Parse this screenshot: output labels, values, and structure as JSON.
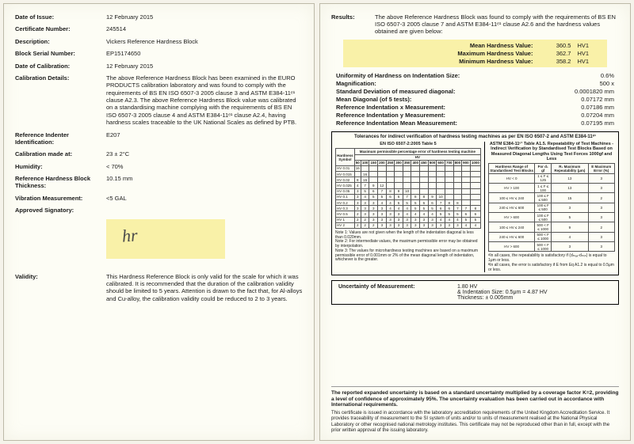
{
  "left": {
    "date_of_issue": {
      "label": "Date of Issue:",
      "value": "12 February 2015"
    },
    "cert_no": {
      "label": "Certificate Number:",
      "value": "245514"
    },
    "description": {
      "label": "Description:",
      "value": "Vickers Reference Hardness Block"
    },
    "serial": {
      "label": "Block Serial Number:",
      "value": "EP15174650"
    },
    "date_cal": {
      "label": "Date of Calibration:",
      "value": "12 February 2015"
    },
    "cal_details": {
      "label": "Calibration Details:",
      "value": "The above Reference Hardness Block has been examined in the EURO PRODUCTS calibration laboratory and was found to comply with the requirements of BS EN ISO 6507-3 2005 clause 3 and ASTM E384-11ᵉ¹ clause A2.3. The above Reference Hardness Block value was calibrated on a standardising machine complying with the requirements of BS EN ISO 6507-3 2005 clause 4 and ASTM E384-11ᵉ¹ clause A2.4, having hardness scales traceable to the UK National Scales as defined by PTB."
    },
    "indenter": {
      "label": "Reference Indenter Identification:",
      "value": "E207"
    },
    "cal_at": {
      "label": "Calibration made at:",
      "value": "23 ± 2°C"
    },
    "humidity": {
      "label": "Humidity:",
      "value": "< 70%"
    },
    "thickness": {
      "label": "Reference Hardness Block Thickness:",
      "value": "10.15 mm"
    },
    "vibration": {
      "label": "Vibration Measurement:",
      "value": "<5 GAL"
    },
    "signatory": {
      "label": "Approved Signatory:"
    },
    "validity": {
      "label": "Validity:",
      "value": "This Hardness Reference Block is only valid for the scale for which it was calibrated. It is recommended that the duration of the calibration validity should be limited to 5 years. Attention is drawn to the fact that, for Al-alloys and Cu-alloy, the calibration validity could be reduced to 2 to 3 years."
    }
  },
  "right": {
    "results": {
      "label": "Results:",
      "value": "The above Reference Hardness Block was found to comply with the requirements of BS EN ISO 6507-3 2005 clause 7 and ASTM E384-11ᵉ¹ clause A2.6 and the hardness values obtained are given below:"
    },
    "mean": {
      "k": "Mean Hardness Value:",
      "v": "360.5",
      "u": "HV1"
    },
    "max": {
      "k": "Maximum Hardness Value:",
      "v": "362.7",
      "u": "HV1"
    },
    "min": {
      "k": "Minimum Hardness Value:",
      "v": "358.2",
      "u": "HV1"
    },
    "metrics": [
      {
        "k": "Uniformity of Hardness on Indentation Size:",
        "v": "0.6%"
      },
      {
        "k": "Magnification:",
        "v": "500 x"
      },
      {
        "k": "Standard Deviation of measured diagonal:",
        "v": "0.0001820 mm"
      },
      {
        "k": "Mean Diagonal (of 5 tests):",
        "v": "0.07172 mm"
      },
      {
        "k": "Reference Indentation x Measurement:",
        "v": "0.07186 mm"
      },
      {
        "k": "Reference Indentation y Measurement:",
        "v": "0.07204 mm"
      },
      {
        "k": "Reference Indentation Mean Measurement:",
        "v": "0.07195 mm"
      }
    ],
    "tol_title": "Tolerances for indirect verification of hardness testing machines as per EN ISO 6507-2 and ASTM E384-11ᵉ¹",
    "tol_left_title": "EN ISO 6507-2:2005 Table 5",
    "tol_right_title": "ASTM E384-11ᵉ¹ Table A1.5. Repeatability of Test Machines - Indirect Verification by Standardised Test Blocks Based on Measured Diagonal Lengths Using Test Forces 1000gf and Less",
    "iso_symbols": [
      "HV 0.01",
      "HV 0.015",
      "HV 0.02",
      "HV 0.025",
      "HV 0.05",
      "HV 0.1",
      "HV 0.2",
      "HV 0.3",
      "HV 0.5",
      "HV 1",
      "HV 2"
    ],
    "iso_head_top": "Maximum permissible percentage error of hardness testing machine",
    "iso_head_sub": [
      "50",
      "100",
      "150",
      "200",
      "250",
      "300",
      "350",
      "400",
      "450",
      "500",
      "600",
      "700",
      "800",
      "900",
      "1000"
    ],
    "iso_rows": [
      [
        "16",
        "",
        "",
        "",
        "",
        "",
        "",
        "",
        "",
        "",
        "",
        "",
        "",
        "",
        ""
      ],
      [
        "",
        "16",
        "",
        "",
        "",
        "",
        "",
        "",
        "",
        "",
        "",
        "",
        "",
        "",
        ""
      ],
      [
        "8",
        "15",
        "",
        "",
        "",
        "",
        "",
        "",
        "",
        "",
        "",
        "",
        "",
        "",
        ""
      ],
      [
        "4",
        "7",
        "9",
        "12",
        "",
        "",
        "",
        "",
        "",
        "",
        "",
        "",
        "",
        "",
        ""
      ],
      [
        "3",
        "5",
        "6",
        "7",
        "8",
        "9",
        "10",
        "",
        "",
        "",
        "",
        "",
        "",
        "",
        ""
      ],
      [
        "3",
        "4",
        "5",
        "5",
        "6",
        "6",
        "7",
        "8",
        "8",
        "9",
        "10",
        "",
        "",
        "",
        ""
      ],
      [
        "3",
        "3",
        "3",
        "4",
        "4",
        "5",
        "5",
        "5",
        "6",
        "6",
        "7",
        "8",
        "8",
        "",
        ""
      ],
      [
        "3",
        "3",
        "3",
        "3",
        "4",
        "4",
        "4",
        "5",
        "5",
        "5",
        "6",
        "6",
        "7",
        "7",
        "8"
      ],
      [
        "2",
        "3",
        "3",
        "3",
        "3",
        "3",
        "4",
        "4",
        "4",
        "4",
        "5",
        "5",
        "5",
        "6",
        "6"
      ],
      [
        "2",
        "2",
        "3",
        "3",
        "3",
        "3",
        "3",
        "3",
        "3",
        "3",
        "4",
        "4",
        "4",
        "5",
        "5"
      ],
      [
        "2",
        "2",
        "2",
        "3",
        "3",
        "3",
        "3",
        "3",
        "3",
        "3",
        "3",
        "3",
        "3",
        "4",
        "4"
      ]
    ],
    "iso_notes": "Note 1: Values are not given when the length of the indentation diagonal is less than 0.020mm.\nNote 2: For intermediate values, the maximum permissible error may be obtained by interpolation.\nNote 3: The values for microhardness testing machines are based on a maximum permissible error of 0.001mm or 2% of the mean diagonal length of indentation, whichever is the greater.",
    "astm_head": [
      "Hardness Range of Standardised Test Blocks",
      "For d₁ gf",
      "R₁ Maximum Repeatability (μm)",
      "E Maximum Error (%)"
    ],
    "astm_rows": [
      [
        "HV < 0",
        "1 ≤ F ≤ 125",
        "13",
        "3"
      ],
      [
        "HV > 100",
        "1 ≤ F ≤ 100",
        "13",
        "3"
      ],
      [
        "100 ≤ HV ≤ 240",
        "100 ≤ F ≤ 500",
        "15",
        "2"
      ],
      [
        "240 ≤ HV ≤ 600",
        "100 ≤ F ≤ 500",
        "3",
        "3"
      ],
      [
        "HV > 600",
        "100 ≤ F ≤ 500",
        "5",
        "3"
      ],
      [
        "100 ≤ HV ≤ 240",
        "500 < F ≤ 1000",
        "9",
        "2"
      ],
      [
        "240 ≤ HV ≤ 600",
        "500 < F ≤ 1000",
        "4",
        "3"
      ],
      [
        "HV > 600",
        "500 < F ≤ 1000",
        "3",
        "3"
      ]
    ],
    "astm_foot": "ᴬIn all cases, the repeatability is satisfactory if (dₘₐₓ-dₘᵢₙ) is equal to 1μm or less.\nᴮIn all cases, the error is satisfactory if E from Eq A1.2 is equal to 0.5μm or less.",
    "uncert": {
      "label": "Uncertainty of Measurement:",
      "v1": "1.80 HV",
      "v2": "& Indentation Size: 0.5μm = 4.87 HV",
      "v3": "Thickness: ± 0.005mm"
    },
    "footer_bold": "The reported expanded uncertainty is based on a standard uncertainty multiplied by a coverage factor K=2, providing a level of confidence of approximately 95%. The uncertainty evaluation has been carried out in accordance with International requirements.",
    "footer_small": "This certificate is issued in accordance with the laboratory accreditation requirements of the United Kingdom Accreditation Service. It provides traceability of measurement to the SI system of units and/or to units of measurement realised at the National Physical Laboratory or other recognised national metrology institutes. This certificate may not be reproduced other than in full, except with the prior written approval of the issuing laboratory."
  }
}
